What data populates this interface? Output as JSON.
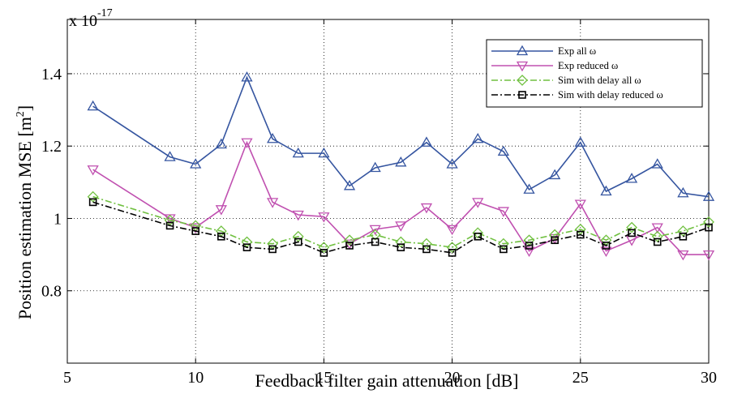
{
  "chart_data": {
    "type": "line",
    "title": "",
    "xlabel": "Feedback filter gain attenuation [dB]",
    "ylabel_main": "Position estimation MSE [m",
    "ylabel_sup": "2",
    "ylabel_end": "]",
    "y_exponent_base": "x 10",
    "y_exponent_power": "-17",
    "xlim": [
      5,
      30
    ],
    "ylim": [
      0.6,
      1.55
    ],
    "xticks": [
      5,
      10,
      15,
      20,
      25,
      30
    ],
    "yticks": [
      0.8,
      1,
      1.2,
      1.4
    ],
    "ytick_labels": [
      "0.8",
      "1",
      "1.2",
      "1.4"
    ],
    "grid": true,
    "legend_position": "top-right",
    "x": [
      6,
      9,
      10,
      11,
      12,
      13,
      14,
      15,
      16,
      17,
      18,
      19,
      20,
      21,
      22,
      23,
      24,
      25,
      26,
      27,
      28,
      29,
      30
    ],
    "series": [
      {
        "name": "Exp all ω",
        "color": "#3555a0",
        "marker": "triangle-up",
        "dash": "solid",
        "values": [
          1.31,
          1.17,
          1.15,
          1.205,
          1.39,
          1.22,
          1.18,
          1.18,
          1.09,
          1.14,
          1.155,
          1.21,
          1.15,
          1.22,
          1.185,
          1.08,
          1.12,
          1.21,
          1.075,
          1.11,
          1.15,
          1.07,
          1.06
        ]
      },
      {
        "name": "Exp reduced ω",
        "color": "#c050b0",
        "marker": "triangle-down",
        "dash": "solid",
        "values": [
          1.135,
          1.0,
          0.975,
          1.025,
          1.21,
          1.045,
          1.01,
          1.005,
          0.93,
          0.97,
          0.98,
          1.03,
          0.97,
          1.045,
          1.02,
          0.91,
          0.945,
          1.04,
          0.91,
          0.94,
          0.975,
          0.9,
          0.9
        ]
      },
      {
        "name": "Sim with delay all ω",
        "color": "#70c040",
        "marker": "diamond",
        "dash": "dashdot",
        "values": [
          1.06,
          0.995,
          0.98,
          0.965,
          0.935,
          0.93,
          0.95,
          0.92,
          0.94,
          0.955,
          0.935,
          0.93,
          0.92,
          0.96,
          0.93,
          0.94,
          0.955,
          0.97,
          0.94,
          0.975,
          0.95,
          0.965,
          0.99
        ]
      },
      {
        "name": "Sim with delay reduced ω",
        "color": "#000000",
        "marker": "square",
        "dash": "dashdot",
        "values": [
          1.045,
          0.98,
          0.965,
          0.95,
          0.92,
          0.915,
          0.935,
          0.905,
          0.925,
          0.935,
          0.92,
          0.915,
          0.905,
          0.95,
          0.915,
          0.925,
          0.94,
          0.955,
          0.925,
          0.96,
          0.935,
          0.95,
          0.975
        ]
      }
    ]
  }
}
